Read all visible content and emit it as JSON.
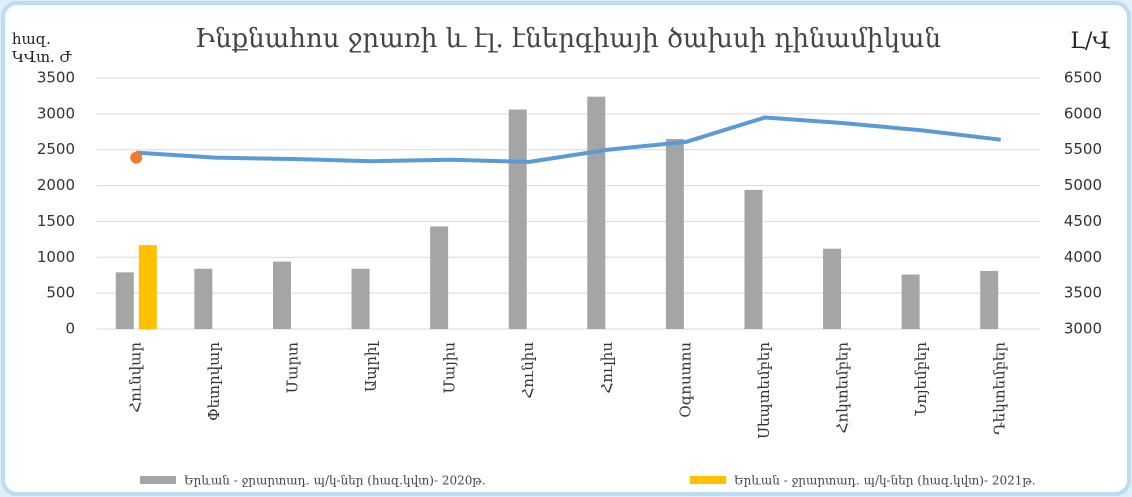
{
  "chart_data": {
    "type": "bar",
    "title": "Ինքնահոս ջրառի և էլ. էներգիայի ծախսի դինամիկան",
    "ylabel": [
      "հազ.",
      "ԿՎտ. Ժ"
    ],
    "y2label": "Լ/Վ",
    "categories": [
      "Հունվար",
      "Փետրվար",
      "Մարտ",
      "Ապրիլ",
      "Մայիս",
      "Հունիս",
      "Հուլիս",
      "Օգոստոս",
      "Սեպտեմբեր",
      "Հոկտեմբեր",
      "Նոյեմբեր",
      "Դեկտեմբեր"
    ],
    "series": [
      {
        "name": "Երևան - ջրարտադ. պ/կ-ներ (հազ.կվտ)- 2020թ.",
        "color": "#a5a5a5",
        "values": [
          790,
          840,
          940,
          840,
          1430,
          3060,
          3240,
          2650,
          1940,
          1120,
          760,
          810
        ]
      },
      {
        "name": "Երևան - ջրարտադ. պ/կ-ներ (հազ.կվտ)- 2021թ.",
        "color": "#ffc000",
        "values": [
          1170,
          null,
          null,
          null,
          null,
          null,
          null,
          null,
          null,
          null,
          null,
          null
        ]
      },
      {
        "type": "line",
        "axis": "y2",
        "color": "#5b9bd5",
        "values": [
          5460,
          5390,
          5370,
          5340,
          5360,
          5330,
          5500,
          5610,
          5950,
          5870,
          5770,
          5640
        ]
      },
      {
        "type": "point",
        "axis": "y2",
        "color": "#ed7d31",
        "values": [
          5390,
          null,
          null,
          null,
          null,
          null,
          null,
          null,
          null,
          null,
          null,
          null
        ]
      }
    ],
    "ylim": [
      0,
      3500
    ],
    "yticks": [
      0,
      500,
      1000,
      1500,
      2000,
      2500,
      3000,
      3500
    ],
    "y2lim": [
      3000,
      6500
    ],
    "y2ticks": [
      3000,
      3500,
      4000,
      4500,
      5000,
      5500,
      6000,
      6500
    ],
    "grid": true
  }
}
